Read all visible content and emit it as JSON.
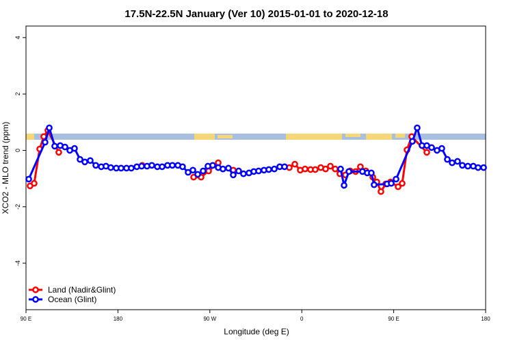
{
  "chart_data": {
    "type": "line",
    "title": "17.5N-22.5N January (Ver 10)   2015-01-01 to 2020-12-18",
    "xlabel": "Longitude (deg E)",
    "ylabel": "XCO2 - MLO trend (ppm)",
    "xlim": [
      90,
      540
    ],
    "xticks": [
      {
        "value": 90,
        "label": "90 E"
      },
      {
        "value": 180,
        "label": "180"
      },
      {
        "value": 270,
        "label": "90 W"
      },
      {
        "value": 360,
        "label": "0"
      },
      {
        "value": 450,
        "label": "90 E"
      },
      {
        "value": 540,
        "label": "180"
      }
    ],
    "ylim": [
      -5.65,
      4.41
    ],
    "yticks": [
      -4,
      -2,
      0,
      2,
      4
    ],
    "legend": "bottom-left",
    "series": [
      {
        "name": "Land (Nadir&Glint)",
        "color": "#ff0000",
        "x": [
          94.0,
          98.0,
          103.4,
          107.4,
          111.4,
          122.1,
          null,
          203.8,
          null,
          254.1,
          261.4,
          268.8,
          278.2,
          null,
          292.9,
          null,
          347.8,
          353.2,
          358.5,
          363.2,
          368.6,
          373.2,
          378.6,
          383.3,
          388.0,
          392.7,
          397.3,
          402.7,
          407.4,
          412.7,
          417.4,
          422.8,
          429.5,
          433.5,
          437.5,
          442.2,
          446.9,
          454.3,
          458.3,
          463.0,
          467.6,
          482.4
        ],
        "values": [
          -1.26,
          -1.17,
          0.05,
          0.49,
          0.71,
          -0.07,
          null,
          -0.53,
          null,
          -0.95,
          -0.95,
          -0.73,
          -0.44,
          null,
          -0.7,
          null,
          -0.61,
          -0.49,
          -0.7,
          -0.66,
          -0.68,
          -0.68,
          -0.61,
          -0.66,
          -0.56,
          -0.66,
          -0.83,
          -0.87,
          -0.73,
          -0.75,
          -0.58,
          -0.73,
          -0.95,
          -1.12,
          -1.46,
          -1.19,
          -1.12,
          -1.29,
          -1.17,
          0.02,
          0.49,
          -0.07
        ]
      },
      {
        "name": "Ocean (Glint)",
        "color": "#0000ff",
        "x": [
          92.7,
          108.7,
          112.8,
          118.1,
          123.5,
          128.2,
          132.9,
          137.5,
          142.9,
          147.6,
          152.9,
          158.3,
          163.7,
          168.3,
          173.0,
          178.4,
          183.1,
          188.4,
          193.1,
          198.5,
          203.2,
          208.5,
          213.2,
          218.6,
          223.3,
          228.6,
          233.3,
          238.7,
          243.3,
          248.7,
          253.4,
          258.1,
          263.4,
          268.1,
          272.8,
          278.2,
          282.8,
          288.2,
          292.9,
          298.2,
          302.9,
          308.3,
          313.0,
          317.7,
          323.0,
          327.7,
          333.1,
          338.4,
          343.1,
          null,
          398.0,
          401.4,
          406.1,
          419.4,
          424.1,
          428.1,
          430.8,
          443.5,
          447.6,
          452.3,
          468.3,
          473.0,
          477.7,
          482.4,
          487.1,
          492.4,
          497.1,
          502.5,
          507.2,
          512.5,
          517.2,
          522.6,
          527.9,
          532.6,
          538.0
        ],
        "values": [
          -1.02,
          0.29,
          0.8,
          0.15,
          0.17,
          0.12,
          0.0,
          0.07,
          -0.32,
          -0.41,
          -0.36,
          -0.53,
          -0.58,
          -0.56,
          -0.61,
          -0.63,
          -0.63,
          -0.63,
          -0.63,
          -0.58,
          -0.56,
          -0.56,
          -0.53,
          -0.58,
          -0.58,
          -0.53,
          -0.53,
          -0.53,
          -0.58,
          -0.78,
          -0.7,
          -0.85,
          -0.73,
          -0.56,
          -0.53,
          -0.61,
          -0.66,
          -0.63,
          -0.87,
          -0.73,
          -0.83,
          -0.8,
          -0.75,
          -0.73,
          -0.7,
          -0.68,
          -0.66,
          -0.58,
          -0.58,
          null,
          -0.66,
          -1.24,
          -0.75,
          -0.75,
          -0.8,
          -0.8,
          -1.22,
          -1.19,
          -1.17,
          -1.02,
          0.32,
          0.8,
          0.17,
          0.17,
          0.1,
          0.0,
          0.07,
          -0.32,
          -0.44,
          -0.39,
          -0.53,
          -0.56,
          -0.56,
          -0.61,
          -0.61
        ]
      }
    ]
  }
}
